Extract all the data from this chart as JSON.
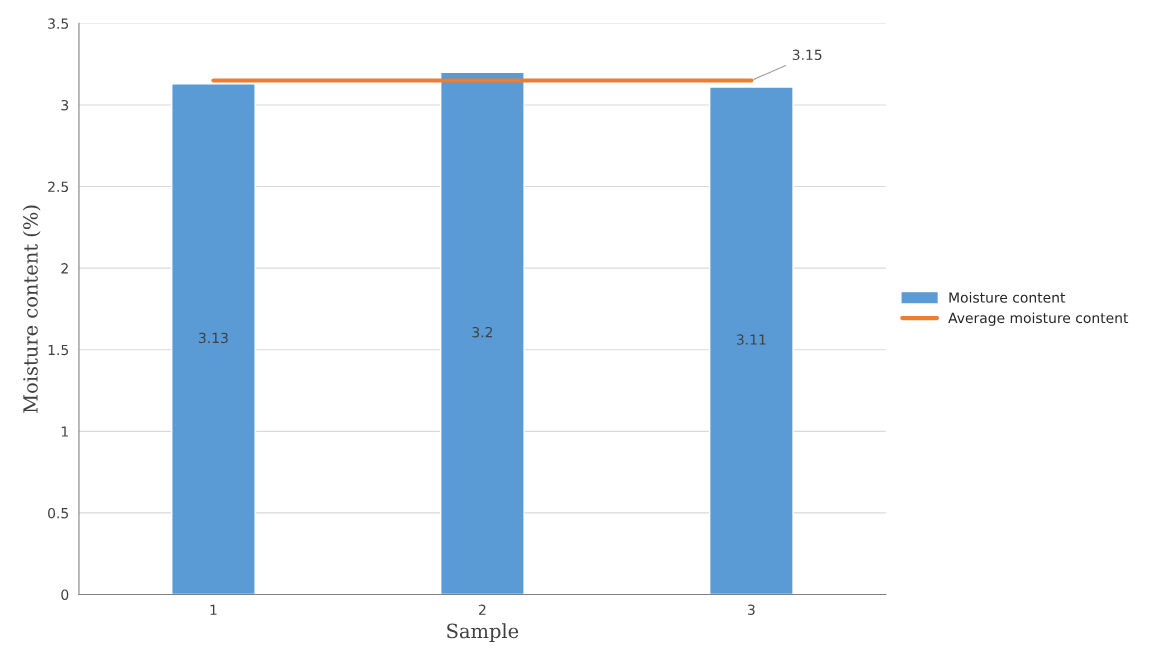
{
  "chart_data": {
    "type": "bar",
    "xlabel": "Sample",
    "ylabel": "Moisture content (%)",
    "categories": [
      "1",
      "2",
      "3"
    ],
    "series": [
      {
        "name": "Moisture content",
        "color": "#5b9bd5",
        "values": [
          3.13,
          3.2,
          3.11
        ],
        "value_labels": [
          "3.13",
          "3.2",
          "3.11"
        ]
      },
      {
        "name": "Average moisture content",
        "type": "line",
        "color": "#ed7d31",
        "values": [
          3.15,
          3.15,
          3.15
        ],
        "value_labels": [
          null,
          null,
          "3.15"
        ]
      }
    ],
    "ylim": [
      0,
      3.5
    ],
    "yticks": [
      0,
      0.5,
      1,
      1.5,
      2,
      2.5,
      3,
      3.5
    ],
    "grid": "y",
    "legend": "right",
    "marker": "none"
  }
}
